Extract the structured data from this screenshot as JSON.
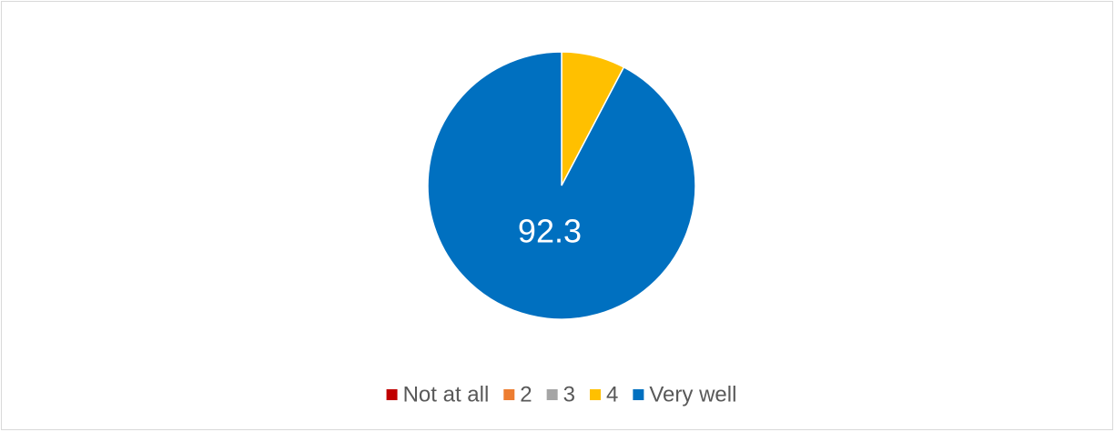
{
  "chart_data": {
    "type": "pie",
    "categories": [
      "Not at all",
      "2",
      "3",
      "4",
      "Very well"
    ],
    "values": [
      0,
      0,
      0,
      7.7,
      92.3
    ],
    "value_labels": [
      null,
      null,
      null,
      null,
      "92.3"
    ],
    "colors": [
      "#c00000",
      "#ed7d31",
      "#a5a5a5",
      "#ffc000",
      "#0070c0"
    ],
    "legend": "bottom"
  }
}
